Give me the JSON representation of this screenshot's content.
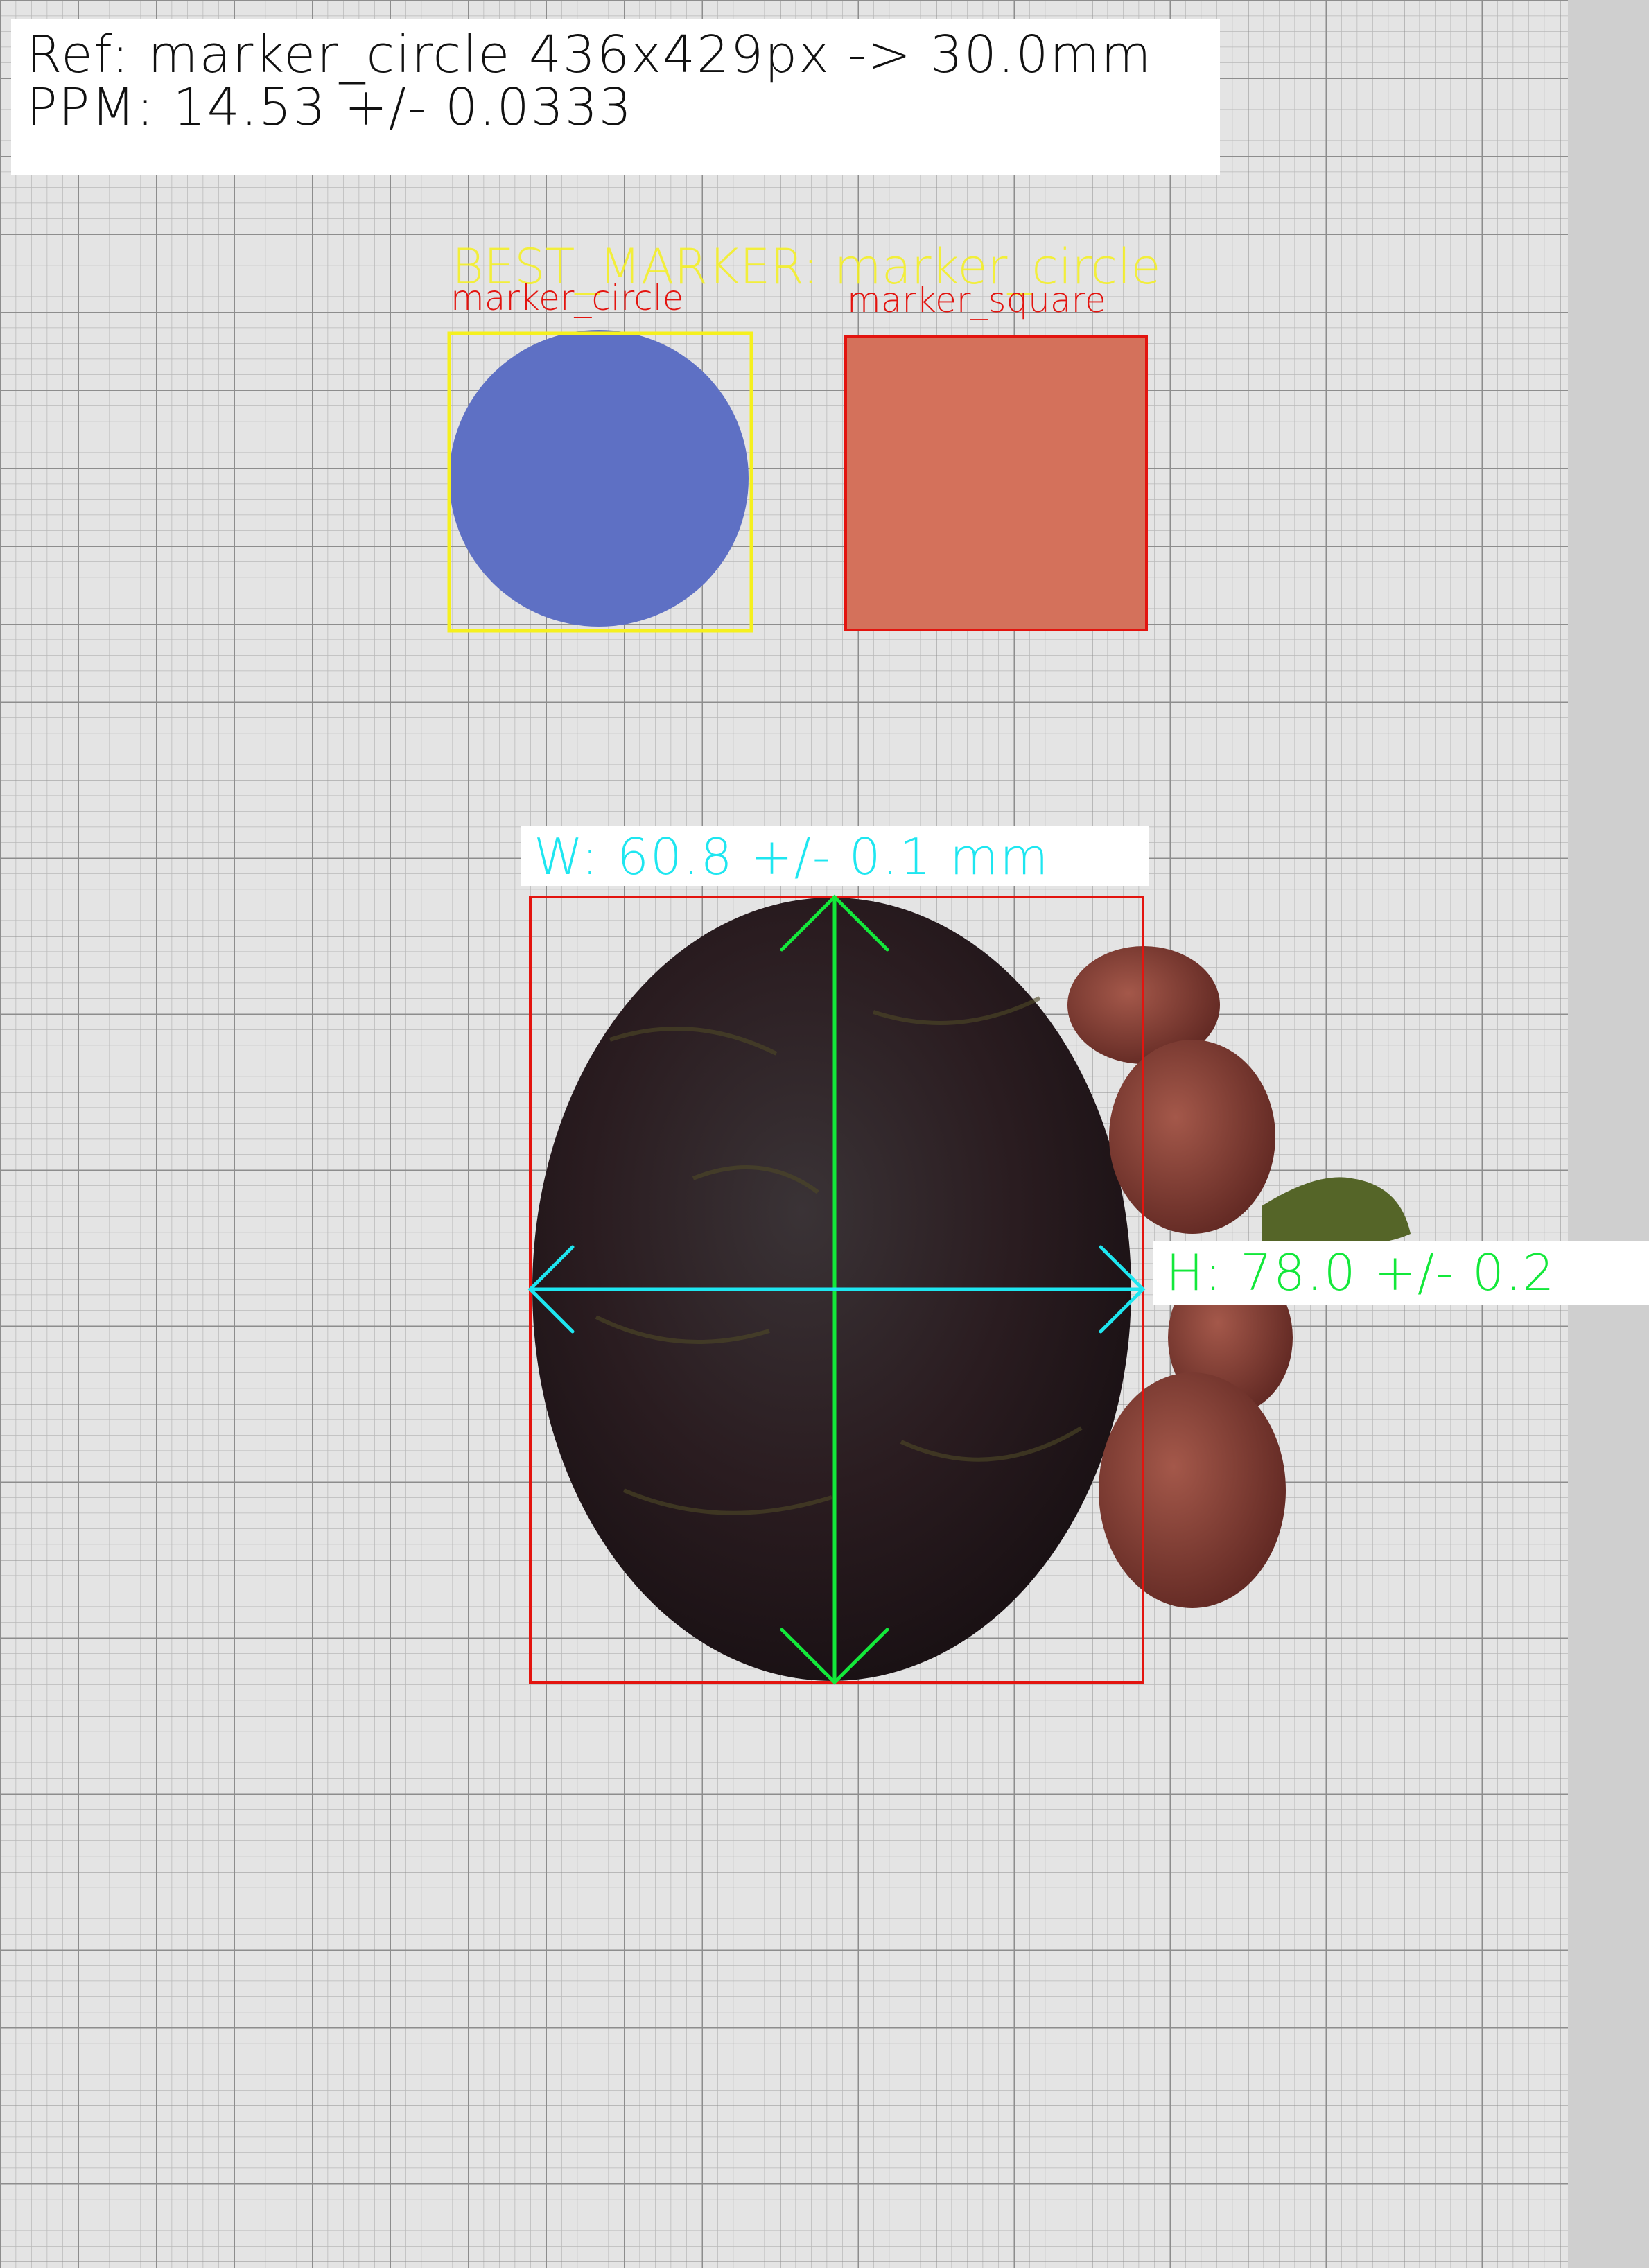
{
  "overlay": {
    "ref_line": "Ref: marker_circle 436x429px -> 30.0mm",
    "ppm_line": "PPM: 14.53 +/- 0.0333",
    "best_marker": "BEST_MARKER: marker_circle",
    "marker_circle_label": "marker_circle",
    "marker_square_label": "marker_square",
    "width_label": "W: 60.8 +/- 0.1 mm",
    "height_label": "H: 78.0 +/- 0.2"
  },
  "colors": {
    "paper": "#e2e2e2",
    "grid_minor": "#b9b9b9",
    "grid_major": "#8d8d8d",
    "marker_circle": "#5e70c4",
    "marker_square": "#d4715b",
    "box_best": "#f5f01e",
    "box_red": "#e3140f",
    "arrow_green": "#13e83a",
    "arrow_cyan": "#1ee6f0",
    "fruit_dark": "#2b1f22",
    "fruit_calyx": "#7a3a2a"
  }
}
